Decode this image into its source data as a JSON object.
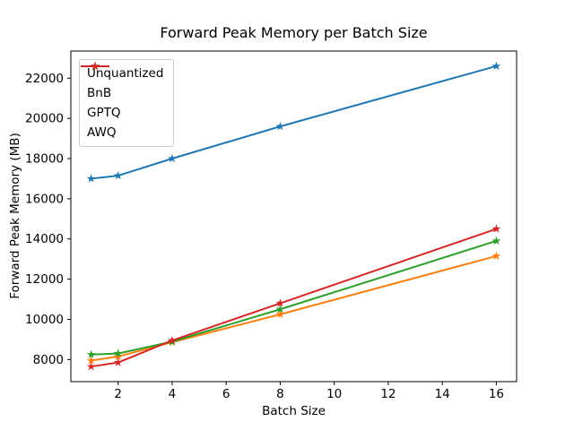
{
  "chart_data": {
    "type": "line",
    "title": "Forward Peak Memory per Batch Size",
    "xlabel": "Batch Size",
    "ylabel": "Forward Peak Memory (MB)",
    "x": [
      1,
      2,
      4,
      8,
      16
    ],
    "xticks": [
      2,
      4,
      6,
      8,
      10,
      12,
      14,
      16
    ],
    "yticks": [
      8000,
      10000,
      12000,
      14000,
      16000,
      18000,
      20000,
      22000
    ],
    "xlim": [
      0.25,
      16.75
    ],
    "ylim": [
      6900,
      23350
    ],
    "grid": false,
    "legend_position": "upper-left",
    "marker": "star",
    "series": [
      {
        "name": "Unquantized",
        "color": "#1f77b4",
        "values": [
          17000,
          17150,
          18000,
          19600,
          22600
        ]
      },
      {
        "name": "BnB",
        "color": "#ff7f0e",
        "values": [
          7950,
          8150,
          8860,
          10250,
          13150
        ]
      },
      {
        "name": "GPTQ",
        "color": "#2ca02c",
        "values": [
          8250,
          8300,
          8890,
          10500,
          13900
        ]
      },
      {
        "name": "AWQ",
        "color": "#d62728",
        "values": [
          7650,
          7850,
          8950,
          10800,
          14500
        ]
      }
    ]
  }
}
